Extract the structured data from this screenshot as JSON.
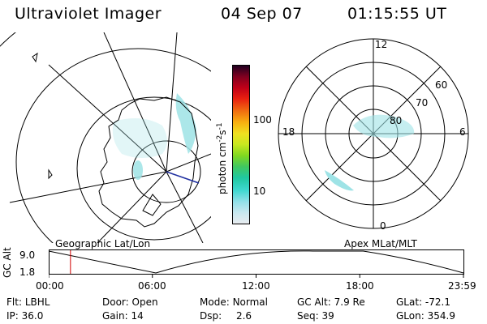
{
  "header": {
    "instrument": "Ultraviolet Imager",
    "date": "04 Sep 07",
    "time": "01:15:55 UT"
  },
  "colorbar": {
    "unit_label": "photon cm",
    "unit_exp1": "-2",
    "unit_s": "s",
    "unit_exp2": "-1",
    "tick_100": "100",
    "tick_10": "10",
    "colors": [
      "#e8ecf0",
      "#c8e8f0",
      "#90e0e8",
      "#40d8d0",
      "#20c8a0",
      "#40c860",
      "#80d820",
      "#c8e820",
      "#f0e020",
      "#f8b010",
      "#f07010",
      "#e82010",
      "#c00018",
      "#800020",
      "#200020"
    ]
  },
  "left_map": {
    "caption": "Geographic Lat/Lon",
    "projection_color": "#000000",
    "aurora_color": "#9ee3e6"
  },
  "right_map": {
    "caption": "Apex MLat/MLT",
    "mlt_12": "12",
    "mlt_18": "18",
    "mlt_6": "6",
    "mlt_0": "0",
    "lat_60": "60",
    "lat_70": "70",
    "lat_80": "80"
  },
  "altitude_plot": {
    "y_label": "GC Alt",
    "y_top": "9.0",
    "y_bottom": "1.8",
    "x_ticks": [
      "00:00",
      "06:00",
      "12:00",
      "18:00",
      "23:59"
    ],
    "marker_color": "#d00000",
    "curve": [
      9.0,
      1.8,
      9.0,
      9.0,
      1.8
    ],
    "current_time_hours": 1.26
  },
  "status": {
    "flt_label": "Flt:",
    "flt_value": "LBHL",
    "door_label": "Door:",
    "door_value": "Open",
    "mode_label": "Mode:",
    "mode_value": "Normal",
    "gcalt_label": "GC Alt:",
    "gcalt_value": "7.9 Re",
    "glat_label": "GLat:",
    "glat_value": "-72.1",
    "ip_label": "IP:",
    "ip_value": "36.0",
    "gain_label": "Gain:",
    "gain_value": "14",
    "dsp_label": "Dsp:",
    "dsp_value": "2.6",
    "seq_label": "Seq:",
    "seq_value": "39",
    "glon_label": "GLon:",
    "glon_value": "354.9"
  }
}
